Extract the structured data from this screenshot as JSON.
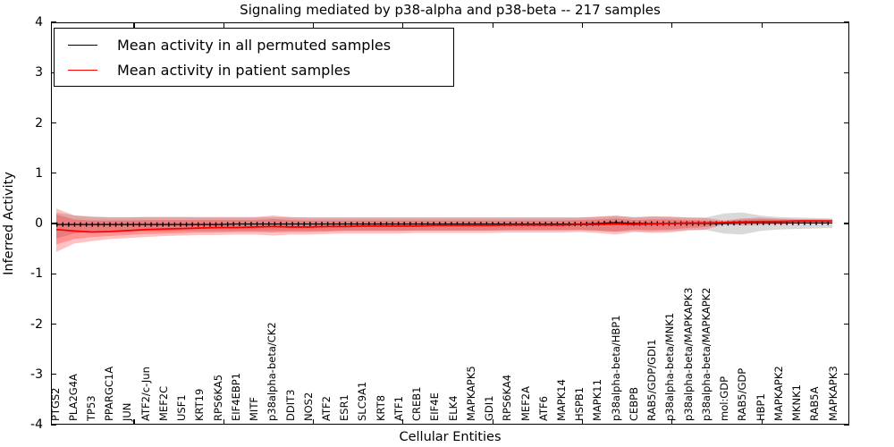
{
  "chart_data": {
    "type": "line",
    "title": "Signaling mediated by p38-alpha and p38-beta -- 217 samples",
    "xlabel": "Cellular Entities",
    "ylabel": "Inferred Activity",
    "ylim": [
      -4,
      4
    ],
    "y_ticks": [
      "4",
      "3",
      "2",
      "1",
      "0",
      "-1",
      "-2",
      "-3",
      "-4"
    ],
    "grid": false,
    "legend_position": "upper left",
    "legend": [
      {
        "label": "Mean activity in all permuted samples",
        "color": "#000000"
      },
      {
        "label": "Mean activity in patient samples",
        "color": "#ff0000"
      }
    ],
    "colors": {
      "permuted_mean_line": "#000000",
      "patient_mean_line": "#ff0000",
      "patient_band_fill": "rgba(255,0,0,0.24)",
      "permuted_band_fill": "rgba(130,130,130,0.30)"
    },
    "categories": [
      "PTGS2",
      "PLA2G4A",
      "TP53",
      "PPARGC1A",
      "JUN",
      "ATF2/c-Jun",
      "MEF2C",
      "USF1",
      "KRT19",
      "RPS6KA5",
      "EIF4EBP1",
      "MITF",
      "p38alpha-beta/CK2",
      "DDIT3",
      "NOS2",
      "ATF2",
      "ESR1",
      "SLC9A1",
      "KRT8",
      "ATF1",
      "CREB1",
      "EIF4E",
      "ELK4",
      "MAPKAPK5",
      "GDI1",
      "RPS6KA4",
      "MEF2A",
      "ATF6",
      "MAPK14",
      "HSPB1",
      "MAPK11",
      "p38alpha-beta/HBP1",
      "CEBPB",
      "RAB5/GDP/GDI1",
      "p38alpha-beta/MNK1",
      "p38alpha-beta/MAPKAPK3",
      "p38alpha-beta/MAPKAPK2",
      "mol:GDP",
      "RAB5/GDP",
      "HBP1",
      "MAPKAPK2",
      "MKNK1",
      "RAB5A",
      "MAPKAPK3"
    ],
    "series": [
      {
        "name": "Mean activity in all permuted samples",
        "values": [
          -0.02,
          -0.02,
          -0.02,
          -0.02,
          -0.02,
          -0.02,
          -0.02,
          -0.02,
          -0.02,
          -0.02,
          -0.01,
          -0.01,
          -0.01,
          -0.01,
          -0.01,
          -0.01,
          -0.01,
          -0.01,
          -0.01,
          -0.01,
          -0.01,
          -0.01,
          -0.01,
          -0.01,
          -0.01,
          -0.01,
          -0.01,
          -0.01,
          -0.01,
          -0.01,
          0.0,
          0.02,
          0.0,
          0.0,
          0.0,
          0.0,
          0.0,
          0.0,
          0.01,
          0.01,
          0.01,
          0.01,
          0.01,
          0.01
        ]
      },
      {
        "name": "Mean activity in patient samples",
        "values": [
          -0.12,
          -0.15,
          -0.17,
          -0.16,
          -0.14,
          -0.12,
          -0.11,
          -0.1,
          -0.09,
          -0.08,
          -0.08,
          -0.07,
          -0.06,
          -0.07,
          -0.07,
          -0.06,
          -0.06,
          -0.05,
          -0.05,
          -0.05,
          -0.05,
          -0.04,
          -0.04,
          -0.04,
          -0.04,
          -0.03,
          -0.03,
          -0.03,
          -0.03,
          -0.02,
          -0.02,
          -0.01,
          -0.02,
          -0.01,
          0.0,
          0.01,
          0.01,
          0.02,
          0.03,
          0.04,
          0.04,
          0.05,
          0.05,
          0.05
        ]
      }
    ],
    "bands": {
      "permuted_std": {
        "hi": [
          0.22,
          0.16,
          0.14,
          0.13,
          0.13,
          0.13,
          0.13,
          0.13,
          0.12,
          0.12,
          0.12,
          0.12,
          0.13,
          0.12,
          0.12,
          0.12,
          0.12,
          0.12,
          0.12,
          0.12,
          0.12,
          0.12,
          0.12,
          0.12,
          0.12,
          0.12,
          0.12,
          0.12,
          0.12,
          0.12,
          0.13,
          0.15,
          0.13,
          0.14,
          0.13,
          0.12,
          0.12,
          0.2,
          0.22,
          0.16,
          0.13,
          0.12,
          0.11,
          0.1
        ],
        "lo": [
          -0.3,
          -0.2,
          -0.17,
          -0.16,
          -0.16,
          -0.16,
          -0.16,
          -0.15,
          -0.15,
          -0.15,
          -0.15,
          -0.15,
          -0.15,
          -0.15,
          -0.15,
          -0.15,
          -0.14,
          -0.14,
          -0.14,
          -0.14,
          -0.14,
          -0.14,
          -0.14,
          -0.14,
          -0.14,
          -0.14,
          -0.14,
          -0.14,
          -0.14,
          -0.14,
          -0.15,
          -0.17,
          -0.15,
          -0.16,
          -0.15,
          -0.13,
          -0.13,
          -0.2,
          -0.22,
          -0.15,
          -0.12,
          -0.11,
          -0.1,
          -0.09
        ]
      },
      "patient_outer": {
        "hi": [
          0.3,
          0.16,
          0.13,
          0.12,
          0.12,
          0.13,
          0.13,
          0.13,
          0.13,
          0.13,
          0.13,
          0.13,
          0.16,
          0.13,
          0.12,
          0.12,
          0.12,
          0.12,
          0.12,
          0.12,
          0.12,
          0.12,
          0.12,
          0.12,
          0.12,
          0.12,
          0.12,
          0.12,
          0.12,
          0.12,
          0.14,
          0.16,
          0.12,
          0.14,
          0.14,
          0.12,
          0.11,
          0.06,
          0.1,
          0.12,
          0.1,
          0.09,
          0.09,
          0.08
        ],
        "lo": [
          -0.57,
          -0.4,
          -0.35,
          -0.31,
          -0.29,
          -0.27,
          -0.25,
          -0.24,
          -0.23,
          -0.23,
          -0.22,
          -0.22,
          -0.24,
          -0.22,
          -0.22,
          -0.21,
          -0.2,
          -0.2,
          -0.2,
          -0.2,
          -0.19,
          -0.19,
          -0.19,
          -0.19,
          -0.19,
          -0.18,
          -0.18,
          -0.18,
          -0.18,
          -0.17,
          -0.19,
          -0.22,
          -0.17,
          -0.19,
          -0.18,
          -0.14,
          -0.12,
          -0.02,
          -0.04,
          -0.03,
          -0.02,
          0.0,
          0.01,
          0.02
        ]
      },
      "patient_inner": {
        "hi": [
          0.18,
          0.08,
          0.06,
          0.06,
          0.06,
          0.07,
          0.07,
          0.07,
          0.07,
          0.07,
          0.07,
          0.07,
          0.09,
          0.07,
          0.06,
          0.06,
          0.06,
          0.06,
          0.06,
          0.06,
          0.06,
          0.06,
          0.06,
          0.06,
          0.06,
          0.06,
          0.06,
          0.06,
          0.06,
          0.07,
          0.08,
          0.1,
          0.07,
          0.08,
          0.08,
          0.07,
          0.06,
          0.04,
          0.08,
          0.09,
          0.08,
          0.07,
          0.07,
          0.06
        ],
        "lo": [
          -0.42,
          -0.31,
          -0.27,
          -0.25,
          -0.23,
          -0.21,
          -0.2,
          -0.19,
          -0.18,
          -0.18,
          -0.17,
          -0.17,
          -0.18,
          -0.17,
          -0.17,
          -0.16,
          -0.15,
          -0.15,
          -0.15,
          -0.15,
          -0.14,
          -0.14,
          -0.14,
          -0.14,
          -0.14,
          -0.13,
          -0.13,
          -0.13,
          -0.13,
          -0.12,
          -0.14,
          -0.16,
          -0.12,
          -0.13,
          -0.12,
          -0.09,
          -0.07,
          0.0,
          -0.01,
          0.0,
          0.01,
          0.02,
          0.03,
          0.03
        ]
      }
    }
  }
}
